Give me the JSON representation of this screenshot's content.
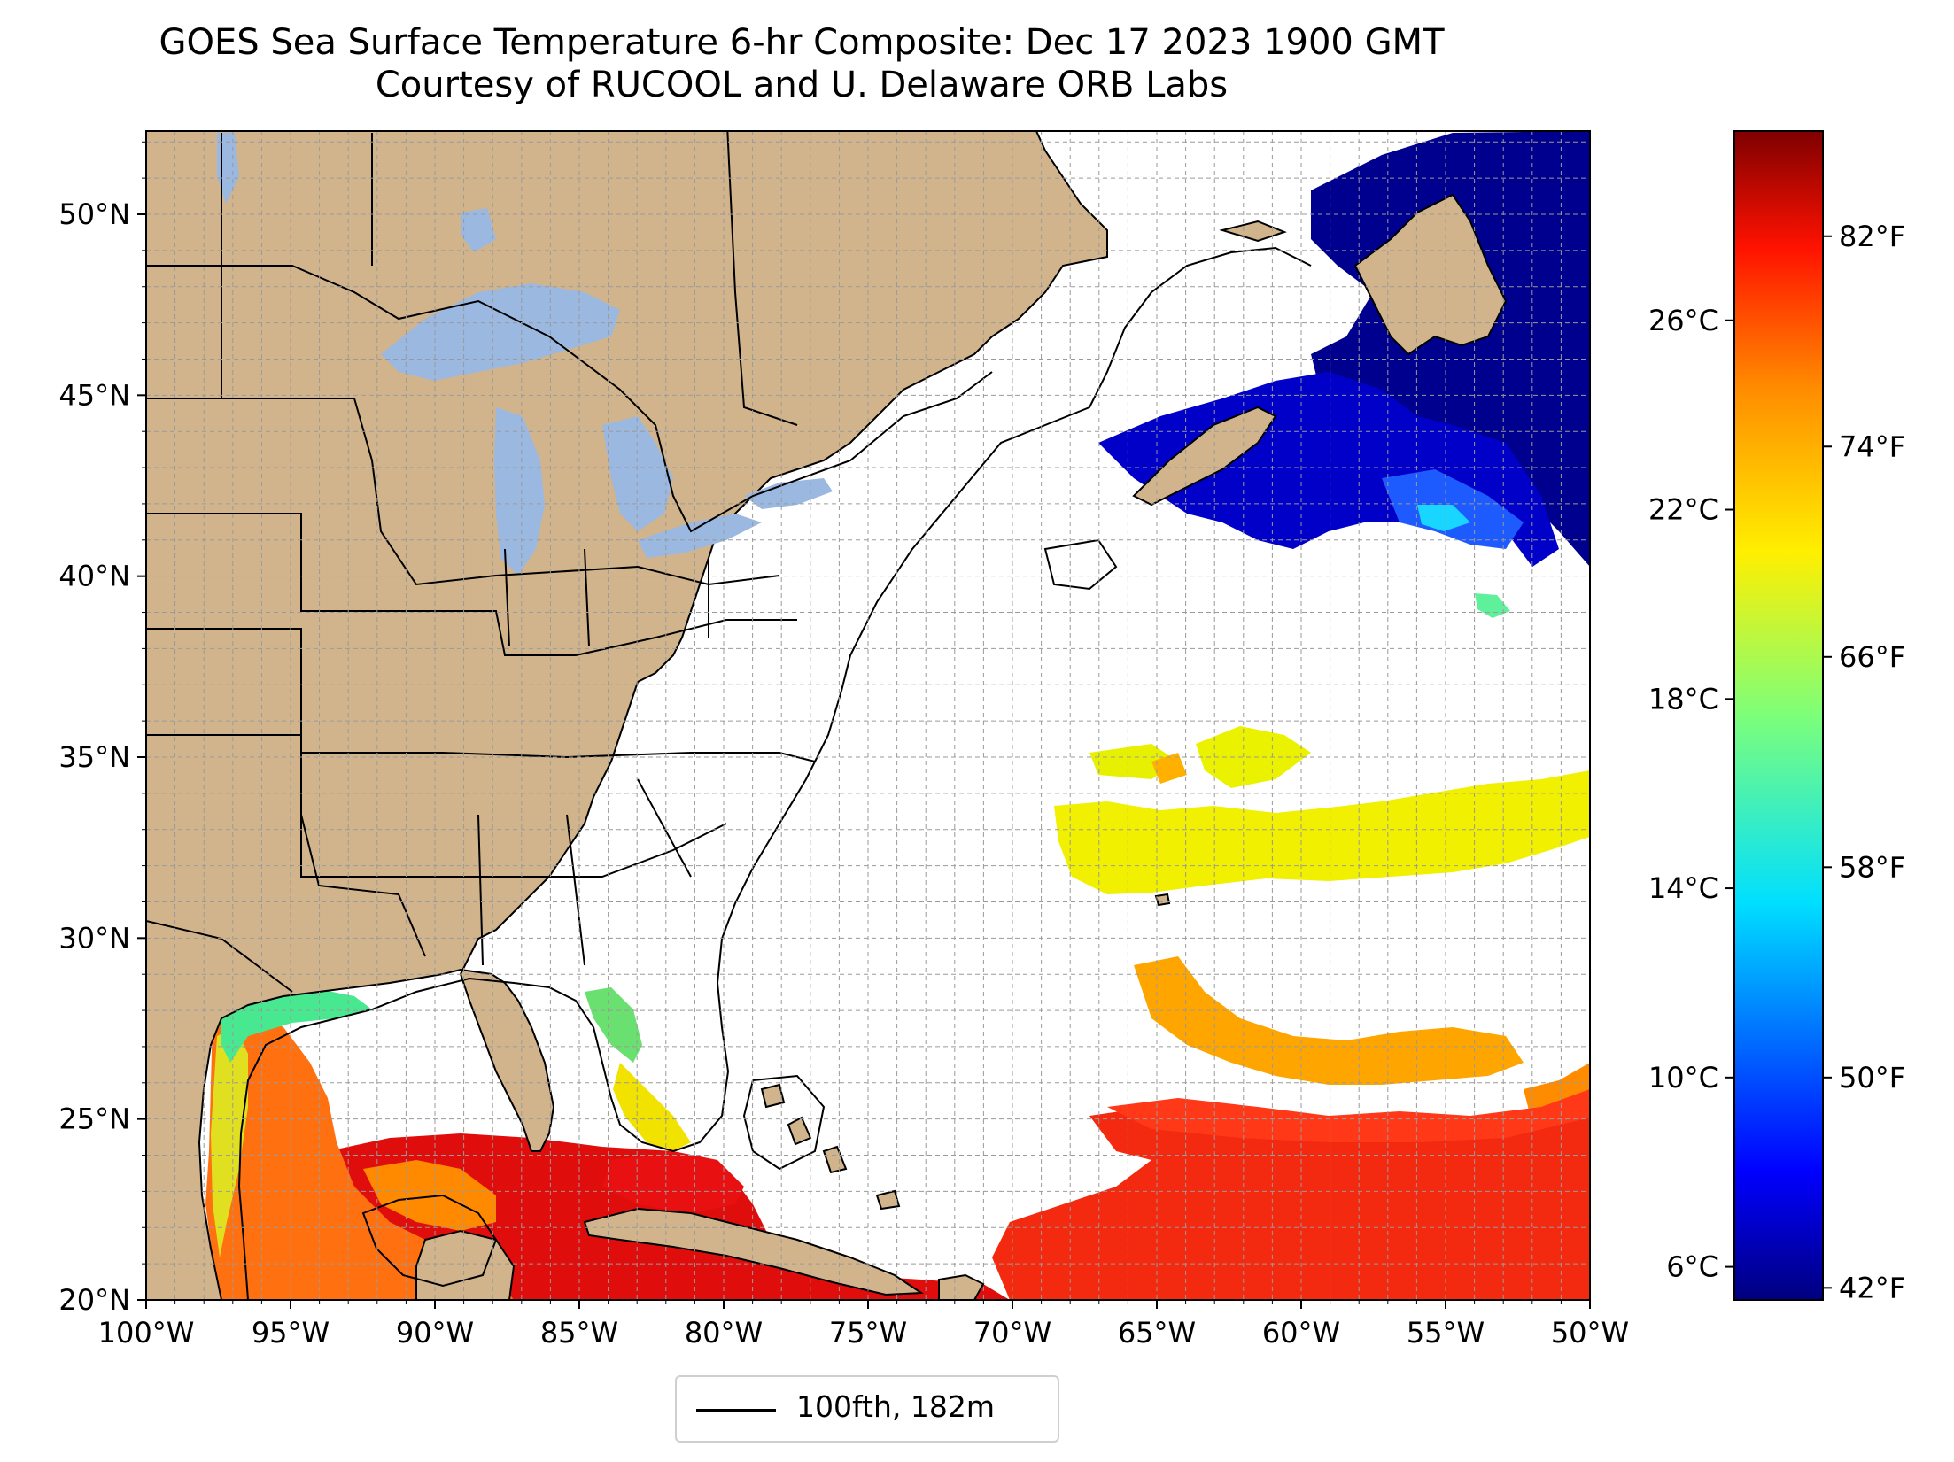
{
  "title": {
    "line1": "GOES Sea Surface Temperature 6-hr Composite: Dec 17 2023 1900 GMT",
    "line2": "Courtesy of RUCOOL and U. Delaware ORB Labs"
  },
  "map": {
    "lon_range": [
      -100,
      -50
    ],
    "lat_range": [
      20,
      52.3
    ],
    "grid": true,
    "land_color": "#d2b48c",
    "lake_color": "#9ab8e0",
    "ocean_no_data_color": "#ffffff",
    "x_ticks": [
      {
        "lon": -100,
        "label": "100°W"
      },
      {
        "lon": -95,
        "label": "95°W"
      },
      {
        "lon": -90,
        "label": "90°W"
      },
      {
        "lon": -85,
        "label": "85°W"
      },
      {
        "lon": -80,
        "label": "80°W"
      },
      {
        "lon": -75,
        "label": "75°W"
      },
      {
        "lon": -70,
        "label": "70°W"
      },
      {
        "lon": -65,
        "label": "65°W"
      },
      {
        "lon": -60,
        "label": "60°W"
      },
      {
        "lon": -55,
        "label": "55°W"
      },
      {
        "lon": -50,
        "label": "50°W"
      }
    ],
    "y_ticks": [
      {
        "lat": 20,
        "label": "20°N"
      },
      {
        "lat": 25,
        "label": "25°N"
      },
      {
        "lat": 30,
        "label": "30°N"
      },
      {
        "lat": 35,
        "label": "35°N"
      },
      {
        "lat": 40,
        "label": "40°N"
      },
      {
        "lat": 45,
        "label": "45°N"
      },
      {
        "lat": 50,
        "label": "50°N"
      }
    ]
  },
  "colorbar": {
    "colormap": "jet",
    "range_c": [
      5.3,
      30.0
    ],
    "celsius_ticks": [
      {
        "value": 6,
        "label": "6°C"
      },
      {
        "value": 10,
        "label": "10°C"
      },
      {
        "value": 14,
        "label": "14°C"
      },
      {
        "value": 18,
        "label": "18°C"
      },
      {
        "value": 22,
        "label": "22°C"
      },
      {
        "value": 26,
        "label": "26°C"
      }
    ],
    "fahrenheit_ticks": [
      {
        "value": 42,
        "label": "42°F"
      },
      {
        "value": 50,
        "label": "50°F"
      },
      {
        "value": 58,
        "label": "58°F"
      },
      {
        "value": 66,
        "label": "66°F"
      },
      {
        "value": 74,
        "label": "74°F"
      },
      {
        "value": 82,
        "label": "82°F"
      }
    ]
  },
  "legend": {
    "label": "100fth, 182m",
    "line_color": "#000000"
  }
}
